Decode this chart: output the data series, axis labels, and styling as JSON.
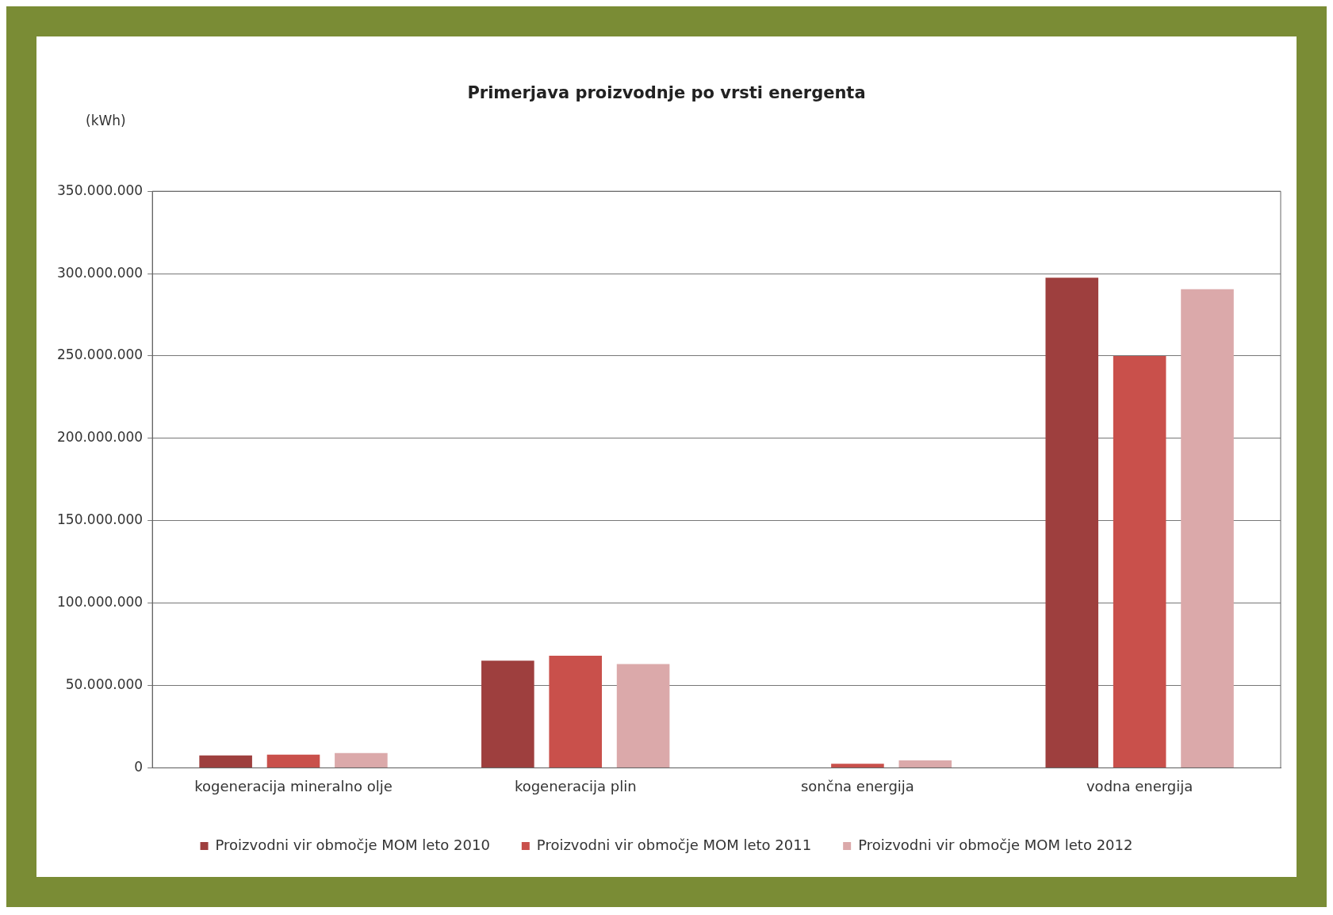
{
  "chart_data": {
    "type": "bar",
    "title": "Primerjava proizvodnje po vrsti energenta",
    "ylabel": "(kWh)",
    "categories": [
      "kogeneracija mineralno olje",
      "kogeneracija plin",
      "sončna energija",
      "vodna energija"
    ],
    "series": [
      {
        "name": "Proizvodni vir območje MOM leto 2010",
        "color": "#9e3f3e",
        "values": [
          7500000,
          65000000,
          null,
          297500000
        ]
      },
      {
        "name": "Proizvodni vir območje MOM leto 2011",
        "color": "#c9504b",
        "values": [
          8000000,
          68000000,
          2500000,
          250000000
        ]
      },
      {
        "name": "Proizvodni vir območje MOM leto 2012",
        "color": "#dba9aa",
        "values": [
          9000000,
          63000000,
          4500000,
          290500000
        ]
      }
    ],
    "ylim": [
      0,
      350000000
    ],
    "yticks": [
      0,
      {
        "value": 50000000,
        "label": "50.000.000"
      },
      {
        "value": 100000000,
        "label": "100.000.000"
      },
      {
        "value": 150000000,
        "label": "150.000.000"
      },
      {
        "value": 200000000,
        "label": "200.000.000"
      },
      {
        "value": 250000000,
        "label": "250.000.000"
      },
      {
        "value": 300000000,
        "label": "300.000.000"
      },
      {
        "value": 350000000,
        "label": "350.000.000"
      }
    ],
    "grid": "y",
    "legend": "bottom"
  }
}
